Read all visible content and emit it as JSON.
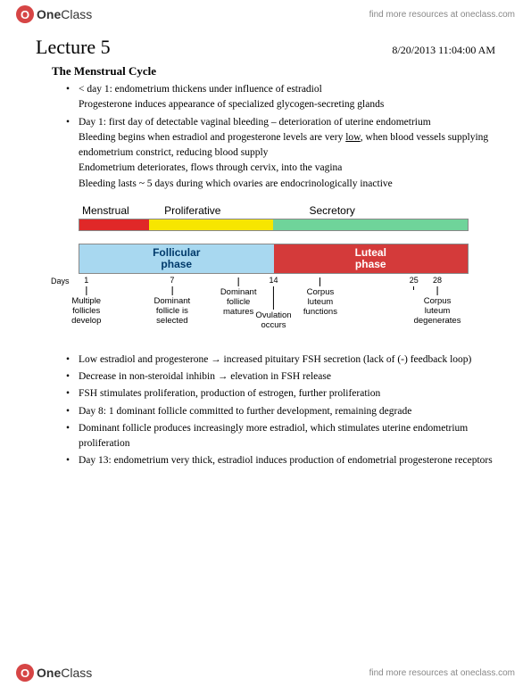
{
  "brand": {
    "logo_text_1": "One",
    "logo_text_2": "Class",
    "logo_initial": "O"
  },
  "header": {
    "find_text": "find more resources at oneclass.com"
  },
  "footer": {
    "find_text": "find more resources at oneclass.com"
  },
  "title": "Lecture 5",
  "datetime": "8/20/2013 11:04:00 AM",
  "section_title": "The Menstrual Cycle",
  "bullets_top": [
    "< day 1: endometrium thickens under influence of estradiol",
    "Progesterone induces appearance of specialized glycogen-secreting glands",
    "Day 1: first day of detectable vaginal bleeding – deterioration of uterine endometrium",
    "Bleeding begins when estradiol and progesterone levels are very ",
    "low",
    ", when blood vessels supplying endometrium constrict, reducing blood supply",
    "Endometrium deteriorates, flows through cervix, into the vagina",
    "Bleeding lasts ~ 5 days during which ovaries are endocrinologically inactive"
  ],
  "diagram": {
    "top_labels": [
      "Menstrual",
      "Proliferative",
      "Secretory"
    ],
    "bar1_segments": [
      {
        "width_pct": 18,
        "color": "#e02828"
      },
      {
        "width_pct": 32,
        "color": "#f7e600"
      },
      {
        "width_pct": 50,
        "color": "#6fd49a"
      }
    ],
    "bar2_segments": [
      {
        "width_pct": 50,
        "color": "#a8d8f0",
        "label": "Follicular\nphase",
        "text_color": "#003a6b"
      },
      {
        "width_pct": 50,
        "color": "#d43a3a",
        "label": "Luteal\nphase",
        "text_color": "#ffffff"
      }
    ],
    "days_label": "Days",
    "ticks": [
      {
        "pos_pct": 2,
        "num": "1",
        "line_h": 10,
        "label": "Multiple\nfollicles\ndevelop"
      },
      {
        "pos_pct": 24,
        "num": "7",
        "line_h": 10,
        "label": "Dominant\nfollicle is\nselected"
      },
      {
        "pos_pct": 41,
        "num": "",
        "line_h": 10,
        "label": "Dominant\nfollicle\nmatures"
      },
      {
        "pos_pct": 50,
        "num": "14",
        "line_h": 26,
        "label": "Ovulation\noccurs"
      },
      {
        "pos_pct": 62,
        "num": "",
        "line_h": 10,
        "label": "Corpus\nluteum\nfunctions"
      },
      {
        "pos_pct": 86,
        "num": "25",
        "line_h": 4,
        "label": ""
      },
      {
        "pos_pct": 92,
        "num": "28",
        "line_h": 10,
        "label": "Corpus\nluteum\ndegenerates"
      }
    ]
  },
  "bullets_bottom": [
    "Low estradiol and progesterone → increased pituitary FSH secretion (lack of (-) feedback loop)",
    "Decrease in non-steroidal inhibin → elevation in FSH release",
    "FSH stimulates proliferation, production of estrogen, further proliferation",
    "Day 8: 1 dominant follicle committed to further development, remaining degrade",
    "Dominant follicle produces increasingly more estradiol, which stimulates uterine endometrium proliferation",
    "Day 13: endometrium very thick, estradiol induces production of endometrial progesterone receptors"
  ]
}
